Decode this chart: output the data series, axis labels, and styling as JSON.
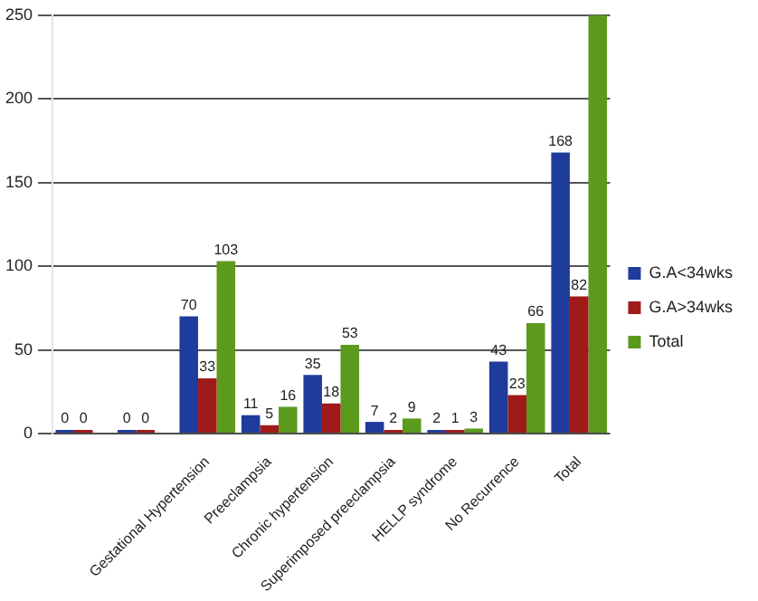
{
  "chart_data": {
    "type": "bar",
    "categories": [
      null,
      null,
      "Gestational Hypertension",
      "Preeclampsia",
      "Chronic hypertension",
      "Superimposed preeclampsia",
      "HELLP syndrome",
      "No Recurrence",
      "Total"
    ],
    "series": [
      {
        "name": "G.A<34wks",
        "color": "#1f3c9c",
        "values": [
          0,
          0,
          70,
          11,
          35,
          7,
          2,
          43,
          168
        ],
        "value_labels": [
          "0",
          "0",
          "70",
          "11",
          "35",
          "7",
          "2",
          "43",
          "168"
        ]
      },
      {
        "name": "G.A>34wks",
        "color": "#a01a1a",
        "values": [
          0,
          0,
          33,
          5,
          18,
          2,
          1,
          23,
          82
        ],
        "value_labels": [
          "0",
          "0",
          "33",
          "5",
          "18",
          "2",
          "1",
          "23",
          "82"
        ]
      },
      {
        "name": "Total",
        "color": "#5c9a1e",
        "values": [
          null,
          null,
          103,
          16,
          53,
          9,
          3,
          66,
          250
        ],
        "value_labels": [
          null,
          null,
          "103",
          "16",
          "53",
          "9",
          "3",
          "66",
          null
        ]
      }
    ],
    "ylim": [
      0,
      250
    ],
    "yticks": [
      0,
      50,
      100,
      150,
      200,
      250
    ],
    "grid": "y",
    "legend": "right"
  }
}
